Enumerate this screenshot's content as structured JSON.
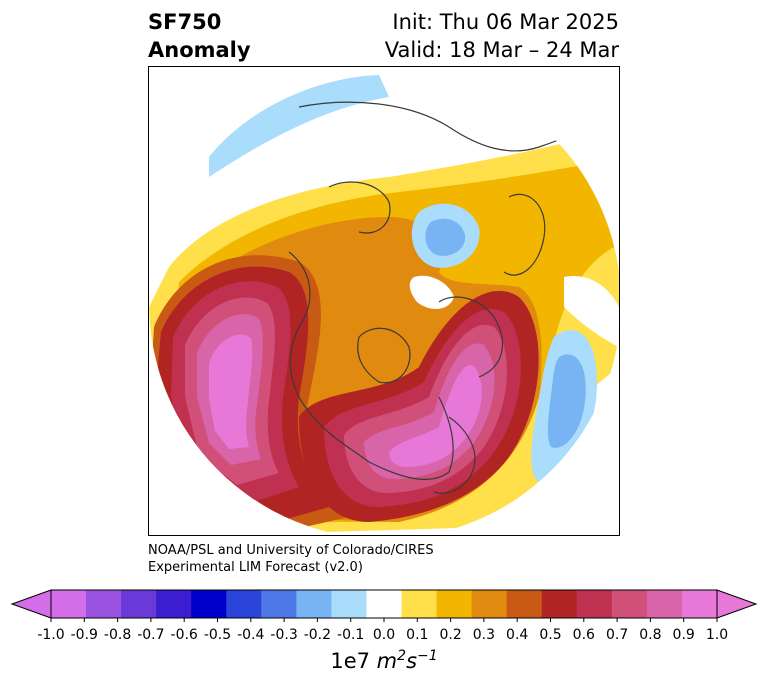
{
  "header": {
    "variable_line1": "SF750",
    "variable_line2": "Anomaly",
    "init_text": "Init: Thu 06 Mar 2025",
    "valid_text": "Valid: 18 Mar – 24 Mar"
  },
  "credit": {
    "line1": "NOAA/PSL and University of Colorado/CIRES",
    "line2": "Experimental LIM Forecast (v2.0)"
  },
  "colorbar": {
    "units_prefix": "1e7",
    "units_m": "m",
    "units_m_exp": "2",
    "units_s": "s",
    "units_s_exp": "−1",
    "ticks": [
      "-1.0",
      "-0.9",
      "-0.8",
      "-0.7",
      "-0.6",
      "-0.5",
      "-0.4",
      "-0.3",
      "-0.2",
      "-0.1",
      "0.0",
      "0.1",
      "0.2",
      "0.3",
      "0.4",
      "0.5",
      "0.6",
      "0.7",
      "0.8",
      "0.9",
      "1.0"
    ],
    "colors": [
      "#d46ee8",
      "#9a52e0",
      "#6a3ad8",
      "#3a1ed0",
      "#0000cc",
      "#2a44d8",
      "#4e78e8",
      "#78b4f4",
      "#aadcfc",
      "#ffffff",
      "#ffe04a",
      "#f2b600",
      "#e08a10",
      "#c85a14",
      "#b02424",
      "#c03050",
      "#d0507a",
      "#d864aa",
      "#e878d8"
    ]
  },
  "map": {
    "projection": "north polar stereographic",
    "features": [
      "positive anomaly ring over North America and Atlantic",
      "negative anomaly over Siberia and mid-Atlantic"
    ]
  }
}
